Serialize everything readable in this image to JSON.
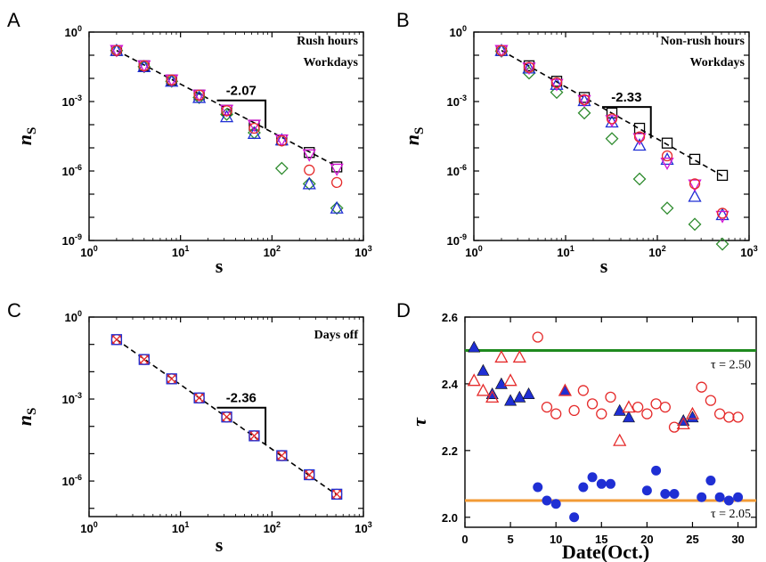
{
  "colors": {
    "black": "#000000",
    "green": "#2e8b2e",
    "blue": "#1f2fd4",
    "magenta": "#d414d4",
    "red": "#e52b2b",
    "solid_blue": "#1f2fd4",
    "line_green": "#1f8a1f",
    "line_orange": "#f29a35"
  },
  "chart_data": [
    {
      "panel": "A",
      "type": "scatter",
      "xlabel": "s",
      "ylabel": "nS",
      "xscale": "log",
      "yscale": "log",
      "xlim": [
        1,
        1000
      ],
      "ylim": [
        1e-09,
        1
      ],
      "xticks": [
        "10^0",
        "10^1",
        "10^2",
        "10^3"
      ],
      "yticks": [
        "10^0",
        "10^-3",
        "10^-6",
        "10^-9"
      ],
      "annotation": [
        "Rush hours",
        "Workdays"
      ],
      "slope_label": "-2.07",
      "slope": -2.07,
      "fit": {
        "x": [
          2,
          512
        ],
        "y": [
          0.16,
          1.6e-06
        ]
      },
      "series": [
        {
          "marker": "square",
          "color": "black",
          "x": [
            2,
            4,
            8,
            16,
            32,
            64,
            128,
            256,
            512
          ],
          "y": [
            0.16,
            0.035,
            0.0085,
            0.0019,
            0.00042,
            9.5e-05,
            2.2e-05,
            6.3e-06,
            1.5e-06
          ]
        },
        {
          "marker": "diamond",
          "color": "green",
          "x": [
            2,
            4,
            8,
            16,
            32,
            64,
            128,
            256,
            512
          ],
          "y": [
            0.16,
            0.032,
            0.0075,
            0.0015,
            0.00028,
            4.5e-05,
            1.3e-06,
            2.8e-07,
            2.5e-08
          ]
        },
        {
          "marker": "triangle-up",
          "color": "blue",
          "x": [
            2,
            4,
            8,
            16,
            32,
            64,
            128,
            256,
            512
          ],
          "y": [
            0.16,
            0.032,
            0.0075,
            0.0015,
            0.00022,
            4.2e-05,
            2.2e-05,
            2.8e-07,
            2.5e-08
          ]
        },
        {
          "marker": "triangle-down",
          "color": "magenta",
          "x": [
            2,
            4,
            8,
            16,
            32,
            64,
            128,
            256,
            512
          ],
          "y": [
            0.16,
            0.035,
            0.0085,
            0.0019,
            0.00042,
            9.5e-05,
            2.2e-05,
            5e-06,
            1.2e-06
          ]
        },
        {
          "marker": "circle",
          "color": "red",
          "x": [
            2,
            4,
            8,
            16,
            32,
            64,
            128,
            256,
            512
          ],
          "y": [
            0.16,
            0.035,
            0.0085,
            0.0019,
            0.0004,
            7e-05,
            2e-05,
            1.1e-06,
            3.2e-07
          ]
        }
      ]
    },
    {
      "panel": "B",
      "type": "scatter",
      "xlabel": "s",
      "ylabel": "nS",
      "xscale": "log",
      "yscale": "log",
      "xlim": [
        1,
        1000
      ],
      "ylim": [
        1e-09,
        1
      ],
      "xticks": [
        "10^0",
        "10^1",
        "10^2",
        "10^3"
      ],
      "yticks": [
        "10^0",
        "10^-3",
        "10^-6",
        "10^-9"
      ],
      "annotation": [
        "Non-rush hours",
        "Workdays"
      ],
      "slope_label": "-2.33",
      "slope": -2.33,
      "fit": {
        "x": [
          2,
          512
        ],
        "y": [
          0.16,
          6.2e-07
        ]
      },
      "series": [
        {
          "marker": "square",
          "color": "black",
          "x": [
            2,
            4,
            8,
            16,
            32,
            64,
            128,
            256,
            512
          ],
          "y": [
            0.16,
            0.035,
            0.0075,
            0.0015,
            0.00032,
            7e-05,
            1.6e-05,
            3.2e-06,
            6.5e-07
          ]
        },
        {
          "marker": "diamond",
          "color": "green",
          "x": [
            2,
            4,
            8,
            16,
            32,
            64,
            128,
            256,
            512
          ],
          "y": [
            0.15,
            0.017,
            0.0025,
            0.00032,
            2.5e-05,
            4.5e-07,
            2.5e-08,
            5e-09,
            7e-10
          ]
        },
        {
          "marker": "triangle-up",
          "color": "blue",
          "x": [
            2,
            4,
            8,
            16,
            32,
            64,
            128,
            256,
            512
          ],
          "y": [
            0.16,
            0.028,
            0.0055,
            0.0011,
            0.00013,
            1.3e-05,
            3.2e-06,
            8e-08,
            1.3e-08
          ]
        },
        {
          "marker": "triangle-down",
          "color": "magenta",
          "x": [
            2,
            4,
            8,
            16,
            32,
            64,
            128,
            256,
            512
          ],
          "y": [
            0.16,
            0.028,
            0.0055,
            0.0011,
            0.00015,
            2.5e-05,
            2.2e-06,
            2.5e-07,
            1.1e-08
          ]
        },
        {
          "marker": "circle",
          "color": "red",
          "x": [
            2,
            4,
            8,
            16,
            32,
            64,
            128,
            256,
            512
          ],
          "y": [
            0.16,
            0.03,
            0.0065,
            0.0012,
            0.00018,
            3e-05,
            4.5e-06,
            2.8e-07,
            1.5e-08
          ]
        }
      ]
    },
    {
      "panel": "C",
      "type": "scatter",
      "xlabel": "s",
      "ylabel": "nS",
      "xscale": "log",
      "yscale": "log",
      "xlim": [
        1,
        1000
      ],
      "ylim": [
        5e-08,
        1
      ],
      "xticks": [
        "10^0",
        "10^1",
        "10^2",
        "10^3"
      ],
      "yticks": [
        "10^0",
        "10^-3",
        "10^-6"
      ],
      "annotation": [
        "Days off"
      ],
      "slope_label": "-2.36",
      "slope": -2.36,
      "fit": {
        "x": [
          2,
          512
        ],
        "y": [
          0.15,
          3.1e-07
        ]
      },
      "series": [
        {
          "marker": "circle",
          "color": "red",
          "x": [
            2,
            4,
            8,
            16,
            32,
            64,
            128,
            256,
            512
          ],
          "y": [
            0.15,
            0.028,
            0.0055,
            0.0011,
            0.00022,
            4.5e-05,
            8.5e-06,
            1.7e-06,
            3.3e-07
          ]
        },
        {
          "marker": "cross",
          "color": "red",
          "x": [
            2,
            4,
            8,
            16,
            32,
            64,
            128,
            256,
            512
          ],
          "y": [
            0.15,
            0.028,
            0.0055,
            0.0011,
            0.00022,
            4.5e-05,
            8.5e-06,
            1.7e-06,
            3.3e-07
          ]
        },
        {
          "marker": "square",
          "color": "blue",
          "x": [
            2,
            4,
            8,
            16,
            32,
            64,
            128,
            256,
            512
          ],
          "y": [
            0.15,
            0.028,
            0.0055,
            0.0011,
            0.00022,
            4.5e-05,
            8.5e-06,
            1.7e-06,
            3.3e-07
          ]
        }
      ]
    },
    {
      "panel": "D",
      "type": "scatter",
      "xlabel": "Date(Oct.)",
      "ylabel": "τ",
      "xlim": [
        0,
        32
      ],
      "ylim": [
        1.97,
        2.6
      ],
      "xticks": [
        0,
        5,
        10,
        15,
        20,
        25,
        30
      ],
      "yticks": [
        2.0,
        2.2,
        2.4,
        2.6
      ],
      "reference_lines": [
        {
          "y": 2.5,
          "label": "τ = 2.50",
          "color": "line_green"
        },
        {
          "y": 2.05,
          "label": "τ = 2.05",
          "color": "line_orange"
        }
      ],
      "series": [
        {
          "marker": "triangle-up-filled",
          "color": "solid_blue",
          "x": [
            1,
            2,
            3,
            4,
            5,
            6,
            7,
            11,
            17,
            18,
            24,
            25
          ],
          "y": [
            2.51,
            2.44,
            2.37,
            2.4,
            2.35,
            2.36,
            2.37,
            2.38,
            2.32,
            2.3,
            2.29,
            2.3
          ]
        },
        {
          "marker": "triangle-up",
          "color": "red",
          "x": [
            1,
            2,
            3,
            4,
            5,
            6,
            11,
            17,
            18,
            24,
            25
          ],
          "y": [
            2.41,
            2.38,
            2.36,
            2.48,
            2.41,
            2.48,
            2.38,
            2.23,
            2.33,
            2.28,
            2.31
          ]
        },
        {
          "marker": "circle",
          "color": "red",
          "x": [
            8,
            9,
            10,
            12,
            13,
            14,
            15,
            16,
            19,
            20,
            21,
            22,
            23,
            26,
            27,
            28,
            29,
            30
          ],
          "y": [
            2.54,
            2.33,
            2.31,
            2.32,
            2.38,
            2.34,
            2.31,
            2.36,
            2.33,
            2.31,
            2.34,
            2.33,
            2.27,
            2.39,
            2.35,
            2.31,
            2.3,
            2.3
          ]
        },
        {
          "marker": "circle-filled",
          "color": "solid_blue",
          "x": [
            8,
            9,
            10,
            12,
            13,
            14,
            15,
            16,
            20,
            21,
            22,
            23,
            26,
            27,
            28,
            29,
            30
          ],
          "y": [
            2.09,
            2.05,
            2.04,
            2.0,
            2.09,
            2.12,
            2.1,
            2.1,
            2.08,
            2.14,
            2.07,
            2.07,
            2.06,
            2.11,
            2.06,
            2.05,
            2.06
          ]
        }
      ]
    }
  ]
}
